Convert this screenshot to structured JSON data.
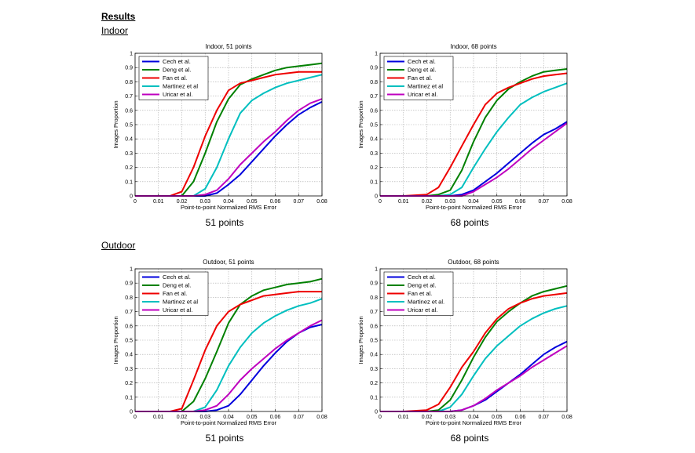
{
  "page": {
    "heading": "Results",
    "section_indoor": "Indoor",
    "section_outdoor": "Outdoor"
  },
  "colors": {
    "Cech et al.": "#0000dd",
    "Deng et al.": "#008000",
    "Fan et al.": "#ee0000",
    "Martinez et al": "#00bfbf",
    "Martinez et al.": "#00bfbf",
    "Uricar et al.": "#bf00bf"
  },
  "chart_data": [
    {
      "type": "line",
      "title": "Indoor, 51 points",
      "caption": "51 points",
      "xlabel": "Point-to-point Normalized RMS Error",
      "ylabel": "Images Proportion",
      "xlim": [
        0,
        0.08
      ],
      "ylim": [
        0,
        1
      ],
      "xticks": [
        "0",
        "0.01",
        "0.02",
        "0.03",
        "0.04",
        "0.05",
        "0.06",
        "0.07",
        "0.08"
      ],
      "yticks": [
        "0",
        "0.1",
        "0.2",
        "0.3",
        "0.4",
        "0.5",
        "0.6",
        "0.7",
        "0.8",
        "0.9",
        "1"
      ],
      "grid": true,
      "legend": "top-left",
      "x": [
        0,
        0.01,
        0.015,
        0.02,
        0.025,
        0.03,
        0.035,
        0.04,
        0.045,
        0.05,
        0.055,
        0.06,
        0.065,
        0.07,
        0.075,
        0.08
      ],
      "series": [
        {
          "name": "Cech et al.",
          "values": [
            0,
            0,
            0,
            0,
            0,
            0,
            0.02,
            0.08,
            0.15,
            0.24,
            0.33,
            0.42,
            0.5,
            0.57,
            0.62,
            0.66
          ]
        },
        {
          "name": "Deng et al.",
          "values": [
            0,
            0,
            0,
            0,
            0.1,
            0.3,
            0.52,
            0.68,
            0.78,
            0.82,
            0.85,
            0.88,
            0.9,
            0.91,
            0.92,
            0.93
          ]
        },
        {
          "name": "Fan et al.",
          "values": [
            0,
            0,
            0,
            0.03,
            0.2,
            0.42,
            0.6,
            0.74,
            0.79,
            0.81,
            0.83,
            0.85,
            0.86,
            0.87,
            0.87,
            0.87
          ]
        },
        {
          "name": "Martinez et al",
          "values": [
            0,
            0,
            0,
            0,
            0,
            0.05,
            0.2,
            0.4,
            0.58,
            0.67,
            0.72,
            0.76,
            0.79,
            0.81,
            0.83,
            0.85
          ]
        },
        {
          "name": "Uricar et al.",
          "values": [
            0,
            0,
            0,
            0,
            0,
            0.01,
            0.04,
            0.12,
            0.22,
            0.3,
            0.38,
            0.45,
            0.53,
            0.6,
            0.65,
            0.68
          ]
        }
      ]
    },
    {
      "type": "line",
      "title": "Indoor, 68 points",
      "caption": "68 points",
      "xlabel": "Point-to-point Normalized RMS Error",
      "ylabel": "Images Proportion",
      "xlim": [
        0,
        0.08
      ],
      "ylim": [
        0,
        1
      ],
      "xticks": [
        "0",
        "0.01",
        "0.02",
        "0.03",
        "0.04",
        "0.05",
        "0.06",
        "0.07",
        "0.08"
      ],
      "yticks": [
        "0",
        "0.1",
        "0.2",
        "0.3",
        "0.4",
        "0.5",
        "0.6",
        "0.7",
        "0.8",
        "0.9",
        "1"
      ],
      "grid": true,
      "legend": "top-left",
      "x": [
        0,
        0.01,
        0.02,
        0.025,
        0.03,
        0.035,
        0.04,
        0.045,
        0.05,
        0.055,
        0.06,
        0.065,
        0.07,
        0.075,
        0.08
      ],
      "series": [
        {
          "name": "Cech et al.",
          "values": [
            0,
            0,
            0,
            0,
            0,
            0.01,
            0.04,
            0.1,
            0.16,
            0.23,
            0.3,
            0.37,
            0.43,
            0.47,
            0.52
          ]
        },
        {
          "name": "Deng et al.",
          "values": [
            0,
            0,
            0,
            0.01,
            0.04,
            0.18,
            0.38,
            0.55,
            0.67,
            0.75,
            0.8,
            0.84,
            0.87,
            0.88,
            0.89
          ]
        },
        {
          "name": "Fan et al.",
          "values": [
            0,
            0,
            0.01,
            0.06,
            0.2,
            0.35,
            0.5,
            0.64,
            0.72,
            0.76,
            0.79,
            0.82,
            0.84,
            0.85,
            0.86
          ]
        },
        {
          "name": "Martinez et al",
          "values": [
            0,
            0,
            0,
            0,
            0.01,
            0.06,
            0.2,
            0.33,
            0.45,
            0.55,
            0.64,
            0.69,
            0.73,
            0.76,
            0.79
          ]
        },
        {
          "name": "Uricar et al.",
          "values": [
            0,
            0,
            0,
            0,
            0,
            0,
            0.03,
            0.08,
            0.13,
            0.19,
            0.26,
            0.33,
            0.39,
            0.45,
            0.51
          ]
        }
      ]
    },
    {
      "type": "line",
      "title": "Outdoor, 51 points",
      "caption": "51 points",
      "xlabel": "Point-to-point Normalized RMS Error",
      "ylabel": "Images Proportion",
      "xlim": [
        0,
        0.08
      ],
      "ylim": [
        0,
        1
      ],
      "xticks": [
        "0",
        "0.01",
        "0.02",
        "0.03",
        "0.04",
        "0.05",
        "0.06",
        "0.07",
        "0.08"
      ],
      "yticks": [
        "0",
        "0.1",
        "0.2",
        "0.3",
        "0.4",
        "0.5",
        "0.6",
        "0.7",
        "0.8",
        "0.9",
        "1"
      ],
      "grid": true,
      "legend": "top-left",
      "x": [
        0,
        0.01,
        0.015,
        0.02,
        0.025,
        0.03,
        0.035,
        0.04,
        0.045,
        0.05,
        0.055,
        0.06,
        0.065,
        0.07,
        0.075,
        0.08
      ],
      "series": [
        {
          "name": "Cech et al.",
          "values": [
            0,
            0,
            0,
            0,
            0,
            0,
            0.01,
            0.04,
            0.12,
            0.22,
            0.32,
            0.41,
            0.49,
            0.55,
            0.59,
            0.61
          ]
        },
        {
          "name": "Deng et al.",
          "values": [
            0,
            0,
            0,
            0,
            0.07,
            0.23,
            0.42,
            0.62,
            0.75,
            0.81,
            0.85,
            0.87,
            0.89,
            0.9,
            0.91,
            0.93
          ]
        },
        {
          "name": "Fan et al.",
          "values": [
            0,
            0,
            0,
            0.02,
            0.22,
            0.43,
            0.6,
            0.7,
            0.75,
            0.78,
            0.81,
            0.82,
            0.83,
            0.84,
            0.84,
            0.84
          ]
        },
        {
          "name": "Martinez et al",
          "values": [
            0,
            0,
            0,
            0,
            0,
            0.03,
            0.15,
            0.32,
            0.45,
            0.55,
            0.62,
            0.67,
            0.71,
            0.74,
            0.76,
            0.79
          ]
        },
        {
          "name": "Uricar et al.",
          "values": [
            0,
            0,
            0,
            0,
            0,
            0.01,
            0.04,
            0.12,
            0.22,
            0.3,
            0.37,
            0.44,
            0.5,
            0.55,
            0.6,
            0.64
          ]
        }
      ]
    },
    {
      "type": "line",
      "title": "Outdoor, 68 points",
      "caption": "68 points",
      "xlabel": "Point-to-point Normalized RMS Error",
      "ylabel": "Images Proportion",
      "xlim": [
        0,
        0.08
      ],
      "ylim": [
        0,
        1
      ],
      "xticks": [
        "0",
        "0.01",
        "0.02",
        "0.03",
        "0.04",
        "0.05",
        "0.06",
        "0.07",
        "0.08"
      ],
      "yticks": [
        "0",
        "0.1",
        "0.2",
        "0.3",
        "0.4",
        "0.5",
        "0.6",
        "0.7",
        "0.8",
        "0.9",
        "1"
      ],
      "grid": true,
      "legend": "top-left",
      "x": [
        0,
        0.01,
        0.02,
        0.025,
        0.03,
        0.035,
        0.04,
        0.045,
        0.05,
        0.055,
        0.06,
        0.065,
        0.07,
        0.075,
        0.08
      ],
      "series": [
        {
          "name": "Cech et al.",
          "values": [
            0,
            0,
            0,
            0,
            0,
            0.01,
            0.04,
            0.08,
            0.14,
            0.2,
            0.26,
            0.33,
            0.4,
            0.45,
            0.49
          ]
        },
        {
          "name": "Deng et al.",
          "values": [
            0,
            0,
            0,
            0.01,
            0.08,
            0.22,
            0.38,
            0.52,
            0.63,
            0.7,
            0.76,
            0.81,
            0.84,
            0.86,
            0.88
          ]
        },
        {
          "name": "Fan et al.",
          "values": [
            0,
            0,
            0.01,
            0.05,
            0.17,
            0.31,
            0.42,
            0.55,
            0.65,
            0.72,
            0.76,
            0.79,
            0.81,
            0.82,
            0.83
          ]
        },
        {
          "name": "Martinez et al.",
          "values": [
            0,
            0,
            0,
            0,
            0.03,
            0.12,
            0.25,
            0.37,
            0.46,
            0.53,
            0.6,
            0.65,
            0.69,
            0.72,
            0.74
          ]
        },
        {
          "name": "Uricar et al.",
          "values": [
            0,
            0,
            0,
            0,
            0,
            0.01,
            0.04,
            0.09,
            0.15,
            0.2,
            0.25,
            0.31,
            0.36,
            0.41,
            0.46
          ]
        }
      ]
    }
  ]
}
